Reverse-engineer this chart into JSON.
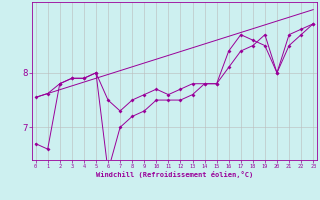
{
  "xlabel": "Windchill (Refroidissement éolien,°C)",
  "background_color": "#cdf0f0",
  "line_color": "#990099",
  "grid_color": "#bbbbbb",
  "hours": [
    0,
    1,
    2,
    3,
    4,
    5,
    6,
    7,
    8,
    9,
    10,
    11,
    12,
    13,
    14,
    15,
    16,
    17,
    18,
    19,
    20,
    21,
    22,
    23
  ],
  "line_trend": [
    7.55,
    7.62,
    7.69,
    7.76,
    7.83,
    7.9,
    7.97,
    8.04,
    8.11,
    8.18,
    8.25,
    8.32,
    8.39,
    8.46,
    8.53,
    8.6,
    8.67,
    8.74,
    8.81,
    8.88,
    8.95,
    9.02,
    9.09,
    9.16
  ],
  "line_mid": [
    7.55,
    7.62,
    7.8,
    7.9,
    7.9,
    8.0,
    7.5,
    7.3,
    7.5,
    7.6,
    7.7,
    7.6,
    7.7,
    7.8,
    7.8,
    7.8,
    8.1,
    8.4,
    8.5,
    8.7,
    8.0,
    8.7,
    8.8,
    8.9
  ],
  "line_low": [
    6.7,
    6.6,
    7.8,
    7.9,
    7.9,
    8.0,
    6.2,
    7.0,
    7.2,
    7.3,
    7.5,
    7.5,
    7.5,
    7.6,
    7.8,
    7.8,
    8.4,
    8.7,
    8.6,
    8.5,
    8.0,
    8.5,
    8.7,
    8.9
  ],
  "ylim": [
    6.4,
    9.3
  ],
  "yticks": [
    7.0,
    8.0
  ],
  "xlim": [
    0,
    23
  ]
}
